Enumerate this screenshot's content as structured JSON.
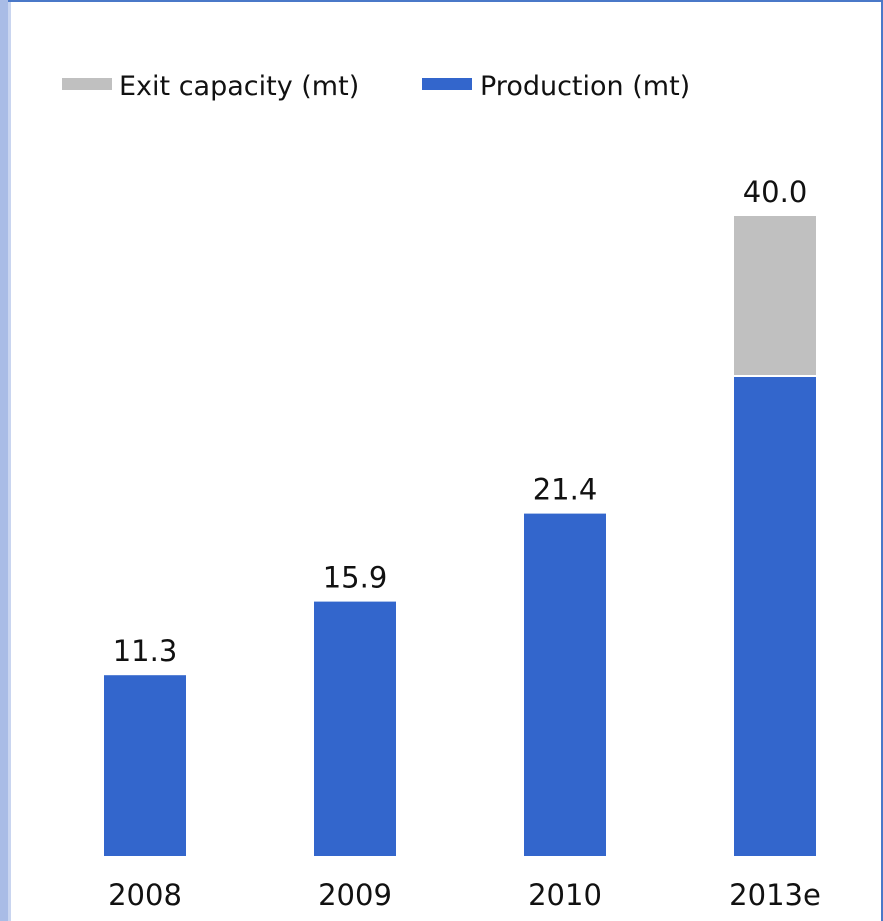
{
  "chart_data": {
    "type": "bar",
    "stacked": true,
    "categories": [
      "2008",
      "2009",
      "2010",
      "2013e"
    ],
    "series": [
      {
        "name": "Production (mt)",
        "color": "#3366cc",
        "values": [
          11.3,
          15.9,
          21.4,
          30.0
        ]
      },
      {
        "name": "Exit capacity (mt)",
        "color": "#c0c0c0",
        "values": [
          0,
          0,
          0,
          10.0
        ]
      }
    ],
    "totals_labels": [
      "11.3",
      "15.9",
      "21.4",
      "40.0"
    ],
    "legend": {
      "placement": "top-left",
      "items": [
        {
          "label": "Exit capacity (mt)",
          "color": "#c0c0c0"
        },
        {
          "label": "Production (mt)",
          "color": "#3366cc"
        }
      ]
    },
    "ylim": [
      0,
      40.0
    ],
    "grid": false
  }
}
